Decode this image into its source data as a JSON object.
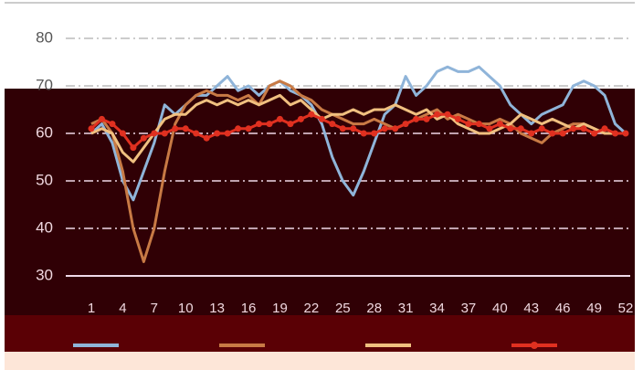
{
  "chart_data": {
    "type": "line",
    "categories": [
      "1",
      null,
      null,
      "4",
      null,
      null,
      "7",
      null,
      null,
      "10",
      null,
      null,
      "13",
      null,
      null,
      "16",
      null,
      null,
      "19",
      null,
      null,
      "22",
      null,
      null,
      "25",
      null,
      null,
      "28",
      null,
      null,
      "31",
      null,
      null,
      "34",
      null,
      null,
      "37",
      null,
      null,
      "40",
      null,
      null,
      "43",
      null,
      null,
      "46",
      null,
      null,
      "49",
      null,
      null,
      "52"
    ],
    "series": [
      {
        "color": "#8fb4d9",
        "values": [
          60,
          62,
          58,
          50,
          46,
          52,
          58,
          66,
          64,
          66,
          68,
          68,
          70,
          72,
          69,
          70,
          68,
          70,
          71,
          69,
          68,
          66,
          62,
          55,
          50,
          47,
          52,
          58,
          64,
          66,
          72,
          68,
          70,
          73,
          74,
          73,
          73,
          74,
          72,
          70,
          66,
          64,
          62,
          64,
          65,
          66,
          70,
          71,
          70,
          68,
          62,
          60
        ]
      },
      {
        "color": "#c87a45",
        "values": [
          62,
          63,
          60,
          52,
          40,
          33,
          40,
          52,
          62,
          66,
          68,
          69,
          68,
          68,
          67,
          68,
          66,
          70,
          71,
          70,
          68,
          67,
          65,
          64,
          63,
          62,
          62,
          63,
          62,
          61,
          62,
          63,
          64,
          65,
          63,
          64,
          63,
          62,
          62,
          63,
          62,
          60,
          59,
          58,
          60,
          61,
          62,
          62,
          61,
          60,
          60,
          60
        ]
      },
      {
        "color": "#f0c080",
        "values": [
          60,
          61,
          60,
          56,
          54,
          57,
          60,
          63,
          64,
          64,
          66,
          67,
          66,
          67,
          66,
          67,
          66,
          67,
          68,
          66,
          67,
          65,
          63,
          64,
          64,
          65,
          64,
          65,
          65,
          66,
          65,
          64,
          65,
          63,
          64,
          62,
          61,
          60,
          60,
          61,
          62,
          64,
          63,
          62,
          63,
          62,
          61,
          62,
          61,
          60,
          60,
          60
        ]
      },
      {
        "color": "#e03020",
        "marker": true,
        "values": [
          61,
          63,
          62,
          60,
          57,
          59,
          60,
          60,
          61,
          61,
          60,
          59,
          60,
          60,
          61,
          61,
          62,
          62,
          63,
          62,
          63,
          64,
          63,
          62,
          61,
          61,
          60,
          60,
          61,
          61,
          62,
          63,
          63,
          64,
          64,
          63,
          62,
          62,
          61,
          62,
          61,
          61,
          60,
          61,
          60,
          60,
          61,
          61,
          60,
          61,
          60,
          60
        ]
      }
    ],
    "ylim": [
      30,
      80
    ],
    "yticks": [
      30,
      40,
      50,
      60,
      70,
      80
    ],
    "grid": true
  }
}
